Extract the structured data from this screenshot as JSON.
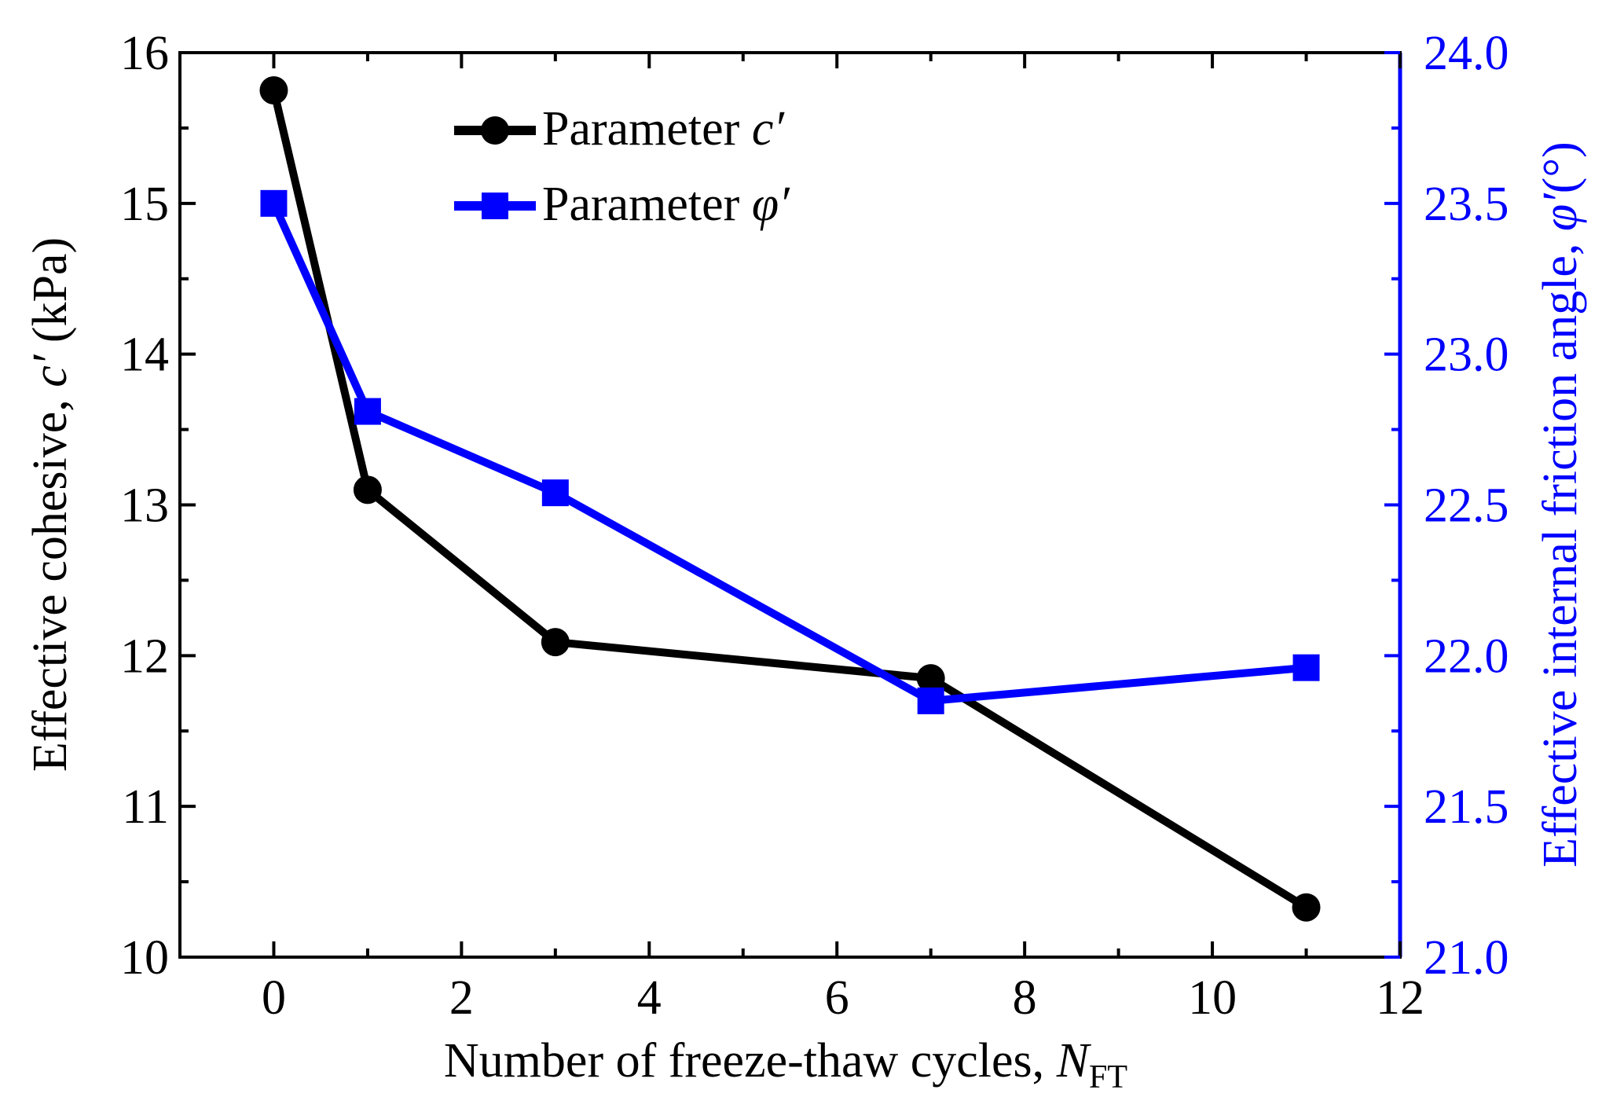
{
  "chart_data": {
    "type": "line",
    "x": [
      0,
      1,
      3,
      7,
      11
    ],
    "xlabel_main": "Number of freeze-thaw cycles, ",
    "xlabel_var": "N",
    "xlabel_sub": "FT",
    "xlim": [
      -1,
      12
    ],
    "xticks": [
      "0",
      "2",
      "4",
      "6",
      "8",
      "10",
      "12"
    ],
    "ylabel_left_main": "Effective cohesive, ",
    "ylabel_left_var": "c′",
    "ylabel_left_unit": " (kPa)",
    "ylim_left": [
      10,
      16
    ],
    "yticks_left": [
      "10",
      "11",
      "12",
      "13",
      "14",
      "15",
      "16"
    ],
    "ylabel_right_main": "Effective internal friction angle, ",
    "ylabel_right_var": "φ′",
    "ylabel_right_unit": "(°)",
    "ylim_right": [
      21.0,
      24.0
    ],
    "yticks_right": [
      "21.0",
      "21.5",
      "22.0",
      "22.5",
      "23.0",
      "23.5",
      "24.0"
    ],
    "series": [
      {
        "name": "Parameter c′",
        "legend_text": "Parameter ",
        "legend_var": "c′",
        "axis": "left",
        "marker": "circle",
        "color": "#000000",
        "values": [
          15.75,
          13.1,
          12.09,
          11.85,
          10.33
        ]
      },
      {
        "name": "Parameter φ′",
        "legend_text": "Parameter ",
        "legend_var": "φ′",
        "axis": "right",
        "marker": "square",
        "color": "#0000ff",
        "values": [
          23.5,
          22.81,
          22.54,
          21.85,
          21.96
        ]
      }
    ],
    "legend_position": "top-center"
  }
}
